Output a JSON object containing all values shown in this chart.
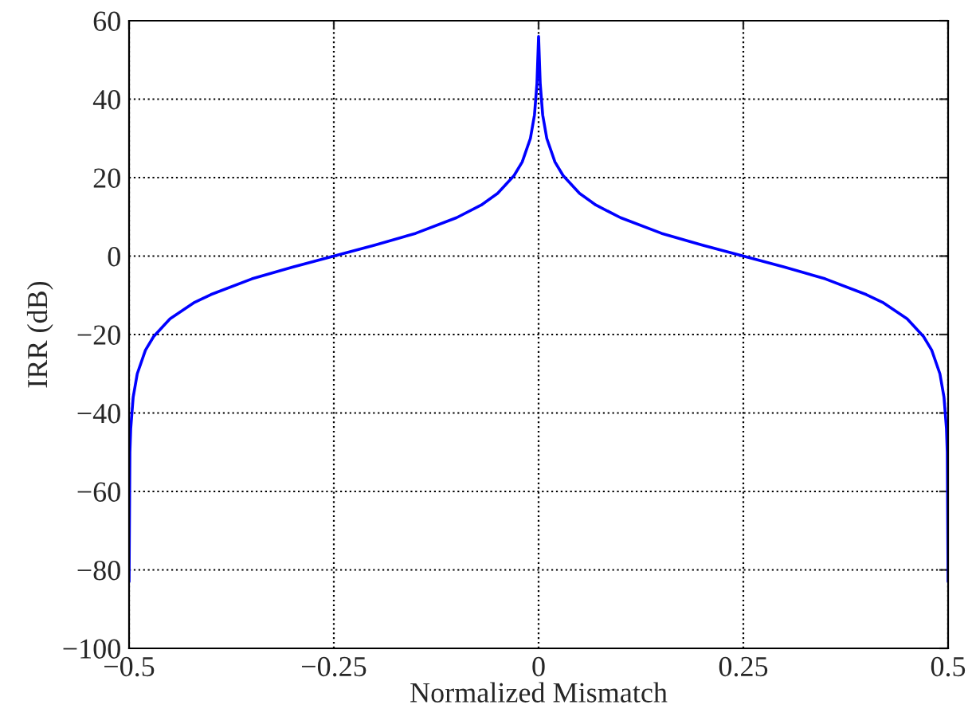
{
  "chart_data": {
    "type": "line",
    "xlabel": "Normalized Mismatch",
    "ylabel": "IRR (dB)",
    "series": [
      {
        "color": "#0000ff",
        "x": [
          -0.5,
          -0.499,
          -0.498,
          -0.495,
          -0.49,
          -0.48,
          -0.47,
          -0.45,
          -0.42,
          -0.4,
          -0.35,
          -0.3,
          -0.25,
          -0.2,
          -0.15,
          -0.1,
          -0.07,
          -0.05,
          -0.03,
          -0.02,
          -0.01,
          -0.005,
          -0.002,
          0,
          0.002,
          0.005,
          0.01,
          0.02,
          0.03,
          0.05,
          0.07,
          0.1,
          0.15,
          0.2,
          0.25,
          0.3,
          0.35,
          0.4,
          0.42,
          0.45,
          0.47,
          0.48,
          0.49,
          0.495,
          0.498,
          0.499,
          0.5
        ],
        "values": [
          -83,
          -50,
          -44,
          -36,
          -30,
          -24,
          -20.5,
          -16,
          -11.8,
          -9.8,
          -5.8,
          -2.8,
          0,
          2.8,
          5.8,
          9.8,
          13,
          16,
          20.5,
          24,
          30,
          36,
          44,
          56,
          44,
          36,
          30,
          24,
          20.5,
          16,
          13,
          9.8,
          5.8,
          2.8,
          0,
          -2.8,
          -5.8,
          -9.8,
          -11.8,
          -16,
          -20.5,
          -24,
          -30,
          -36,
          -44,
          -50,
          -83
        ]
      }
    ],
    "xlim": [
      -0.5,
      0.5
    ],
    "xticks": [
      {
        "value": -0.5,
        "label": "−0.5"
      },
      {
        "value": -0.25,
        "label": "−0.25"
      },
      0,
      0.25,
      0.5
    ],
    "ylim": [
      -100,
      60
    ],
    "yticks": [
      {
        "value": -100,
        "label": "−100"
      },
      {
        "value": -80,
        "label": "−80"
      },
      {
        "value": -60,
        "label": "−60"
      },
      {
        "value": -40,
        "label": "−40"
      },
      {
        "value": -20,
        "label": "−20"
      },
      0,
      20,
      40,
      60
    ],
    "grid": true,
    "line_style": "solid",
    "marker": "none"
  }
}
